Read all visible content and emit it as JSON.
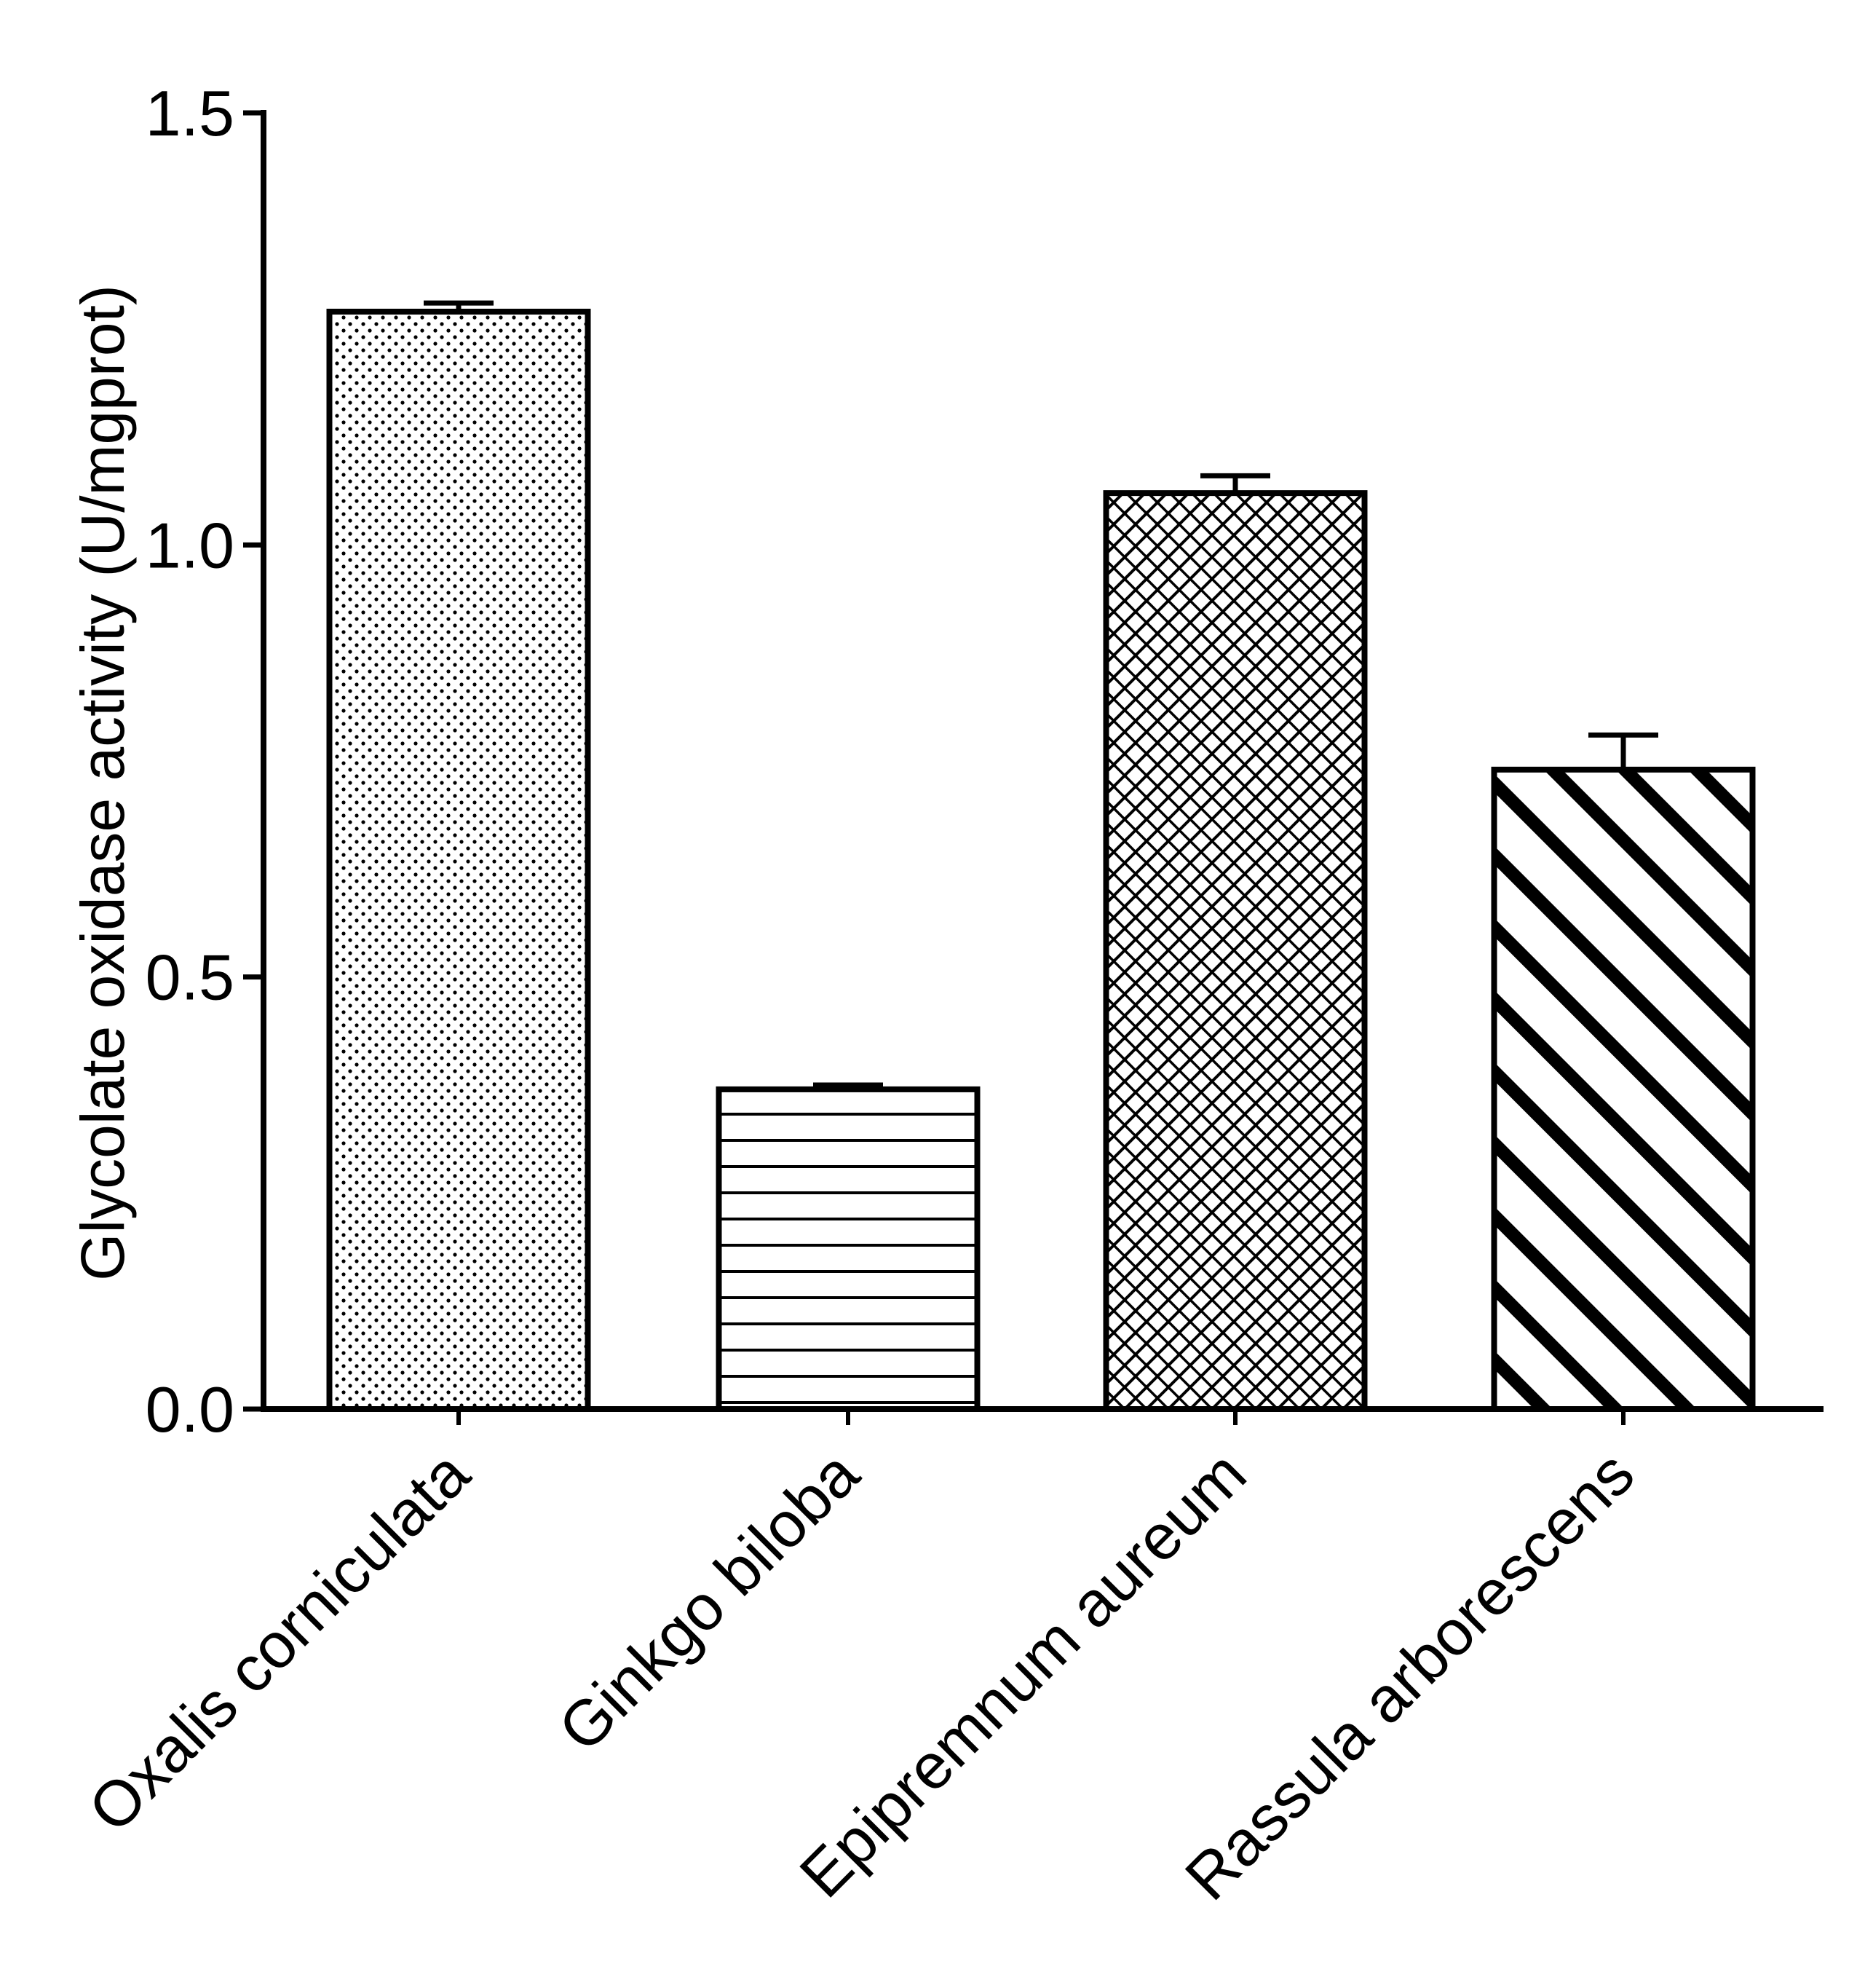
{
  "chart_data": {
    "type": "bar",
    "title": "",
    "xlabel": "",
    "ylabel": "Glycolate oxidase activity (U/mgprot)",
    "ylim": [
      0,
      1.5
    ],
    "yticks": [
      {
        "value": 0.0,
        "label": "0.0"
      },
      {
        "value": 0.5,
        "label": "0.5"
      },
      {
        "value": 1.0,
        "label": "1.0"
      },
      {
        "value": 1.5,
        "label": "1.5"
      }
    ],
    "categories": [
      "Oxalis corniculata",
      "Ginkgo biloba",
      "Epipremnum aureum",
      "Rassula arborescens"
    ],
    "values": [
      1.27,
      0.37,
      1.06,
      0.74
    ],
    "errors": [
      0.01,
      0.005,
      0.02,
      0.04
    ],
    "patterns": [
      "dots",
      "horizontal-lines",
      "crosshatch",
      "diagonal-stripes"
    ],
    "grid": false,
    "colors": {
      "stroke": "#000000",
      "fill": "#ffffff"
    }
  }
}
